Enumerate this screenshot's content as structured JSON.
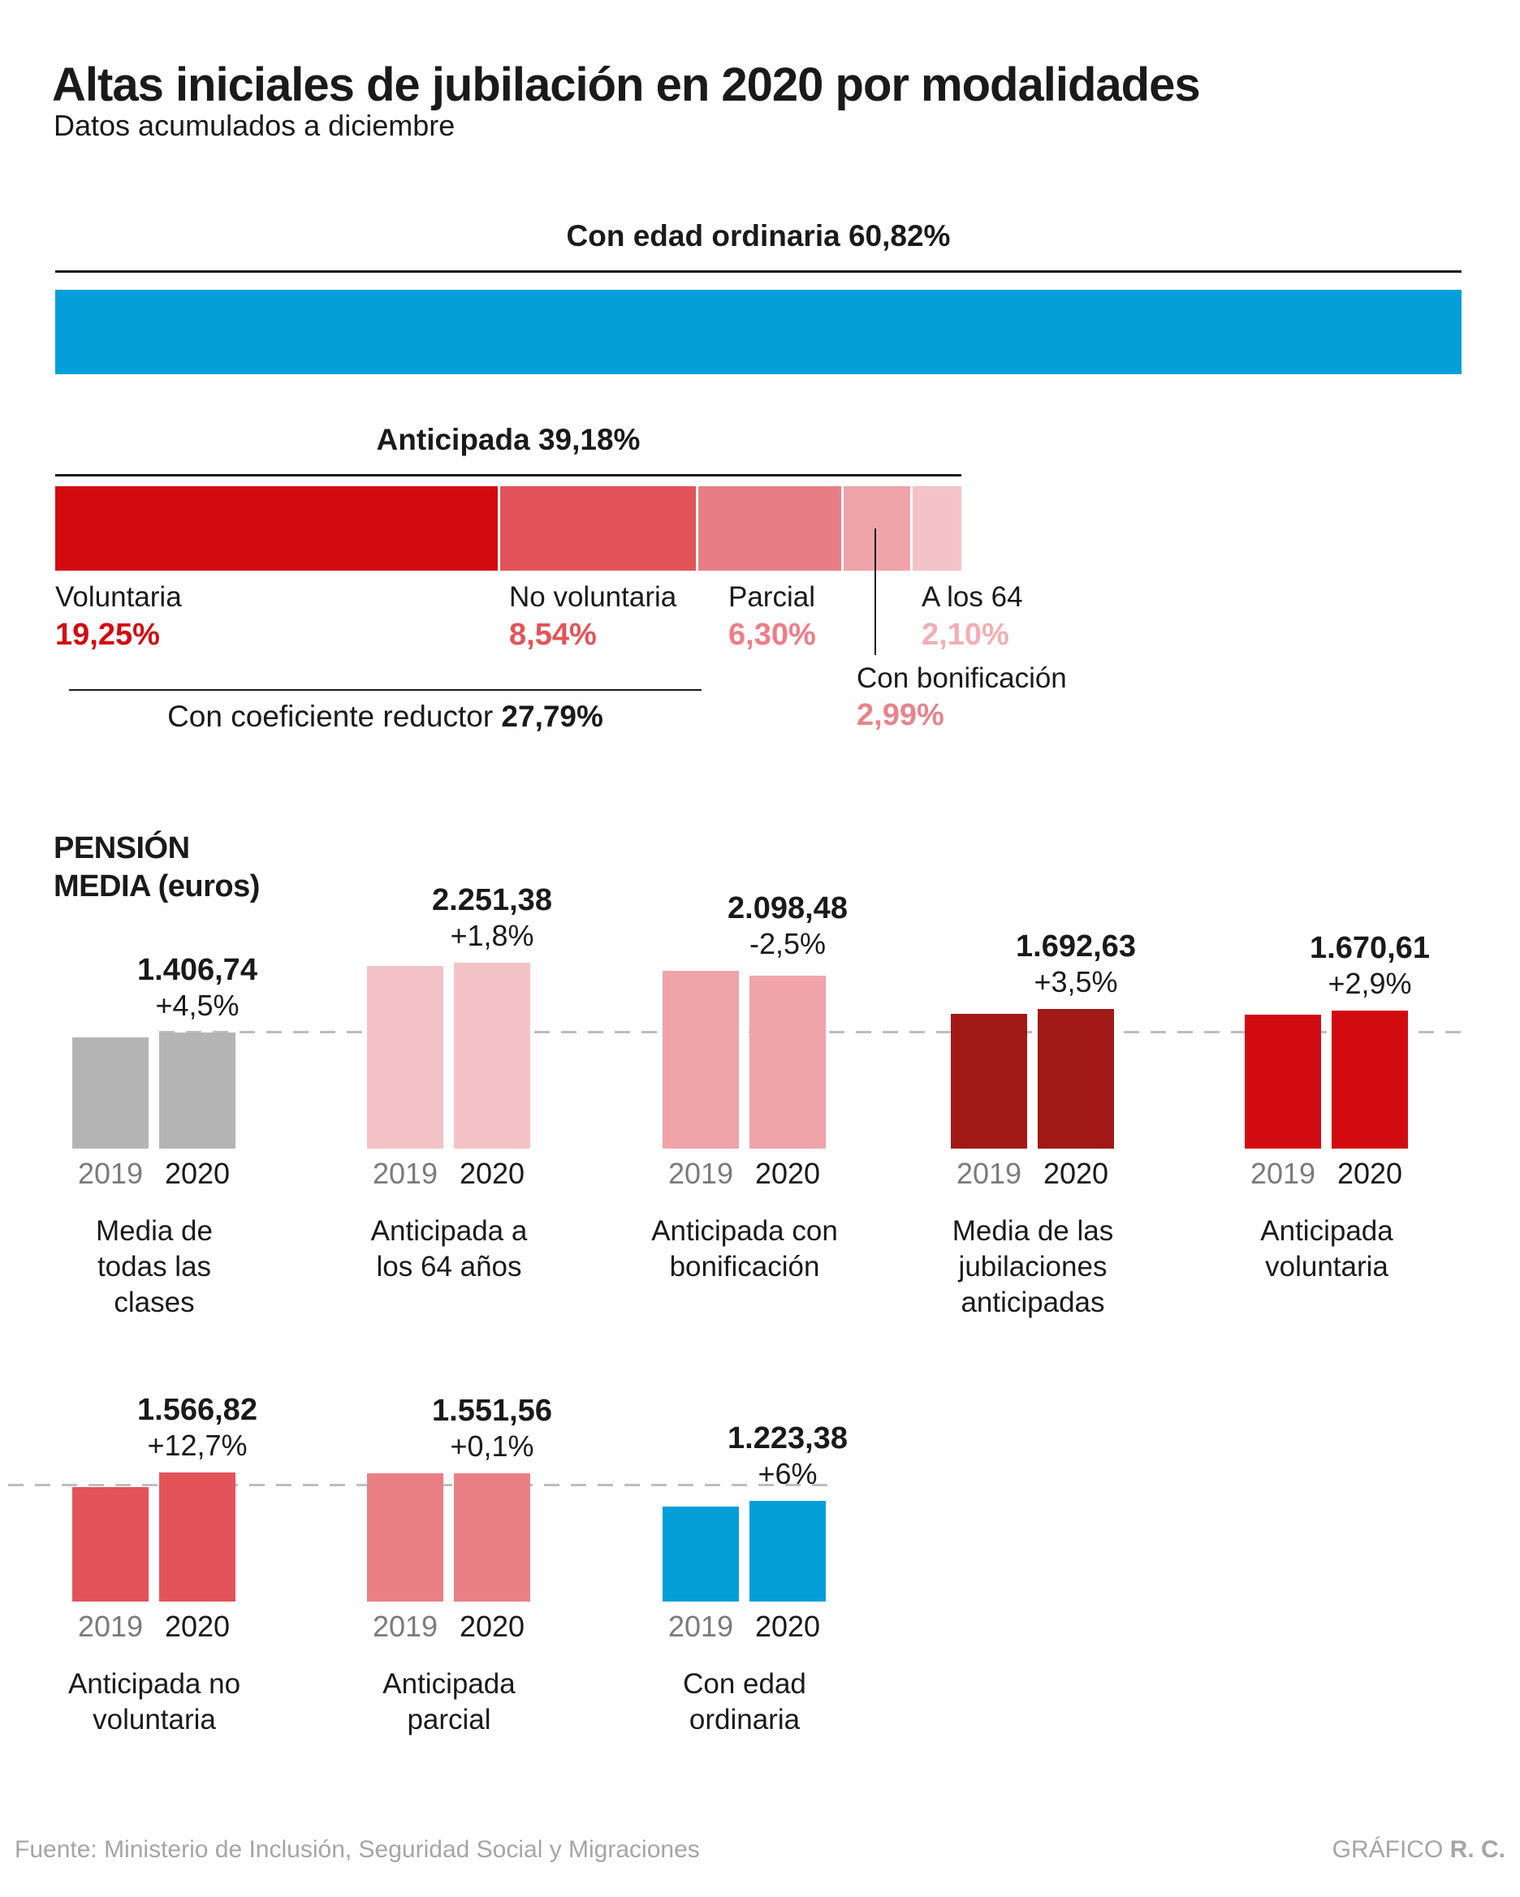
{
  "title": "Altas iniciales de jubilación en 2020 por modalidades",
  "subtitle": "Datos acumulados a diciembre",
  "footer": {
    "source": "Fuente: Ministerio de Inclusión, Seguridad Social y Migraciones",
    "credit_prefix": "GRÁFICO ",
    "credit_bold": "R. C."
  },
  "colors": {
    "text": "#1a1a1a",
    "year_2019": "#7b7b7b",
    "year_2020": "#1a1a1a",
    "dashed_reference_line": "#bdbdbd",
    "footer_text": "#a5a5a5"
  },
  "chart_data": [
    {
      "type": "bar",
      "title": "Con edad ordinaria 60,82%",
      "label": "Con edad ordinaria",
      "value": 60.82,
      "value_label": "60,82%",
      "color": "#049fd9"
    },
    {
      "type": "bar",
      "title": "Anticipada 39,18%",
      "label": "Anticipada",
      "total": 39.18,
      "total_label": "39,18%",
      "segments": [
        {
          "label": "Voluntaria",
          "value": 19.25,
          "value_label": "19,25%",
          "color": "#d20b11",
          "value_color": "#d20b11"
        },
        {
          "label": "No voluntaria",
          "value": 8.54,
          "value_label": "8,54%",
          "color": "#e25459",
          "value_color": "#e25459"
        },
        {
          "label": "Parcial",
          "value": 6.3,
          "value_label": "6,30%",
          "color": "#e87e85",
          "value_color": "#ee7d87"
        },
        {
          "label": "Con bonificación",
          "value": 2.99,
          "value_label": "2,99%",
          "color": "#efa4aa",
          "value_color": "#e8838b"
        },
        {
          "label": "A los 64",
          "value": 2.1,
          "value_label": "2,10%",
          "color": "#f4c3c7",
          "value_color": "#f2aeb4"
        }
      ],
      "bracket": {
        "label": "Con coeficiente reductor",
        "value": 27.79,
        "value_label": "27,79%"
      }
    },
    {
      "type": "bar",
      "title": "PENSIÓN MEDIA (euros)",
      "title_lines": [
        "PENSIÓN",
        "MEDIA (euros)"
      ],
      "series_labels": [
        "2019",
        "2020"
      ],
      "reference_value": 1406.74,
      "groups": [
        {
          "row": 1,
          "label": "Media de todas las clases",
          "value_2020": 1406.74,
          "value_label": "1.406,74",
          "pct": 4.5,
          "pct_label": "+4,5%",
          "color": "#b4b4b4"
        },
        {
          "row": 1,
          "label": "Anticipada a los 64 años",
          "value_2020": 2251.38,
          "value_label": "2.251,38",
          "pct": 1.8,
          "pct_label": "+1,8%",
          "color": "#f4c3c7"
        },
        {
          "row": 1,
          "label": "Anticipada con bonificación",
          "value_2020": 2098.48,
          "value_label": "2.098,48",
          "pct": -2.5,
          "pct_label": "-2,5%",
          "color": "#efa4aa"
        },
        {
          "row": 1,
          "label": "Media de las jubilaciones anticipadas",
          "value_2020": 1692.63,
          "value_label": "1.692,63",
          "pct": 3.5,
          "pct_label": "+3,5%",
          "color": "#a21916"
        },
        {
          "row": 1,
          "label": "Anticipada voluntaria",
          "value_2020": 1670.61,
          "value_label": "1.670,61",
          "pct": 2.9,
          "pct_label": "+2,9%",
          "color": "#d20b11"
        },
        {
          "row": 2,
          "label": "Anticipada no voluntaria",
          "value_2020": 1566.82,
          "value_label": "1.566,82",
          "pct": 12.7,
          "pct_label": "+12,7%",
          "color": "#e25459"
        },
        {
          "row": 2,
          "label": "Anticipada parcial",
          "value_2020": 1551.56,
          "value_label": "1.551,56",
          "pct": 0.1,
          "pct_label": "+0,1%",
          "color": "#e97f85"
        },
        {
          "row": 2,
          "label": "Con edad ordinaria",
          "value_2020": 1223.38,
          "value_label": "1.223,38",
          "pct": 6,
          "pct_label": "+6%",
          "color": "#049fd9"
        }
      ]
    }
  ]
}
